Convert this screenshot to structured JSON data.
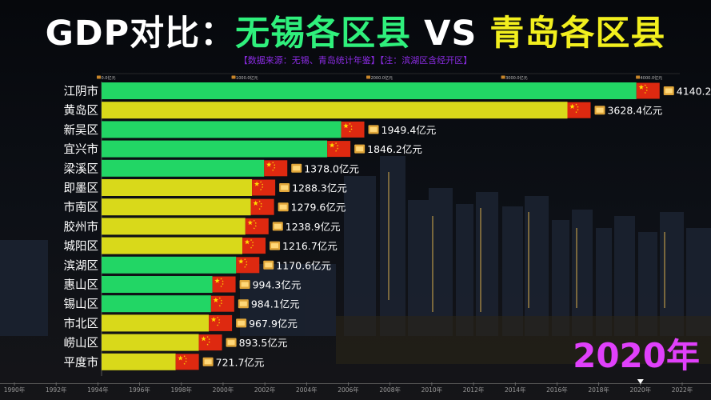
{
  "header": {
    "title_part1": "GDP对比：",
    "title_part2": "无锡各区县",
    "title_part3": " VS ",
    "title_part4": "青岛各区县",
    "source_note": "【数据来源：无锡、青岛统计年鉴】【注：滨湖区含经开区】"
  },
  "year_label": "2020年",
  "colors": {
    "wuxi": "#22d665",
    "qingdao": "#d9d91a",
    "flag": "#de2910",
    "star": "#ffde00",
    "title_green": "#2ff07c",
    "title_yellow": "#f2ef1e",
    "subtitle": "#8a2be2",
    "year": "#e040fb"
  },
  "chart_data": {
    "type": "bar",
    "orientation": "horizontal",
    "value_suffix": "亿元",
    "top_axis_ticks": [
      "0.0亿元",
      "1000.0亿元",
      "2000.0亿元",
      "3000.0亿元",
      "4000.0亿元"
    ],
    "top_axis_values": [
      0,
      1000,
      2000,
      3000,
      4000
    ],
    "xlim": [
      0,
      4290
    ],
    "categories": [
      "江阴市",
      "黄岛区",
      "新吴区",
      "宜兴市",
      "梁溪区",
      "即墨区",
      "市南区",
      "胶州市",
      "城阳区",
      "滨湖区",
      "惠山区",
      "锡山区",
      "市北区",
      "崂山区",
      "平度市"
    ],
    "values": [
      4140.2,
      3628.4,
      1949.4,
      1846.2,
      1378.0,
      1288.3,
      1279.6,
      1238.9,
      1216.7,
      1170.6,
      994.3,
      984.1,
      967.9,
      893.5,
      721.7
    ],
    "value_labels": [
      "4140.2亿元",
      "3628.4亿元",
      "1949.4亿元",
      "1846.2亿元",
      "1378.0亿元",
      "1288.3亿元",
      "1279.6亿元",
      "1238.9亿元",
      "1216.7亿元",
      "1170.6亿元",
      "994.3亿元",
      "984.1亿元",
      "967.9亿元",
      "893.5亿元",
      "721.7亿元"
    ],
    "city": [
      "wuxi",
      "qingdao",
      "wuxi",
      "wuxi",
      "wuxi",
      "qingdao",
      "qingdao",
      "qingdao",
      "qingdao",
      "wuxi",
      "wuxi",
      "wuxi",
      "qingdao",
      "qingdao",
      "qingdao"
    ],
    "timeline": {
      "labels": [
        "1990年",
        "1992年",
        "1994年",
        "1996年",
        "1998年",
        "2000年",
        "2002年",
        "2004年",
        "2006年",
        "2008年",
        "2010年",
        "2012年",
        "2014年",
        "2016年",
        "2018年",
        "2020年",
        "2022年"
      ],
      "values": [
        1990,
        1992,
        1994,
        1996,
        1998,
        2000,
        2002,
        2004,
        2006,
        2008,
        2010,
        2012,
        2014,
        2016,
        2018,
        2020,
        2022
      ],
      "current": 2020
    }
  }
}
